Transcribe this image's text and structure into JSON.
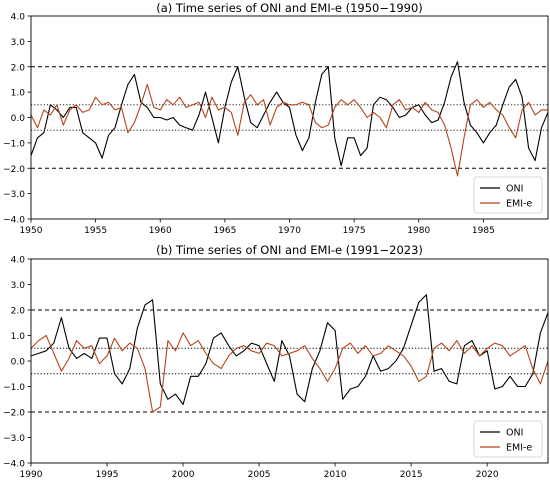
{
  "figure": {
    "background": "#ffffff"
  },
  "chart_data": [
    {
      "type": "line",
      "title": "(a) Time series of ONI and EMI-e (1950−1990)",
      "xlim": [
        1950,
        1990
      ],
      "ylim": [
        -4.0,
        4.0
      ],
      "xticks": [
        1950,
        1955,
        1960,
        1965,
        1970,
        1975,
        1980,
        1985
      ],
      "yticks": [
        -4.0,
        -3.0,
        -2.0,
        -1.0,
        0.0,
        1.0,
        2.0,
        3.0,
        4.0
      ],
      "ytick_labels": [
        "−4.0",
        "−3.0",
        "−2.0",
        "−1.0",
        "0.0",
        "1.0",
        "2.0",
        "3.0",
        "4.0"
      ],
      "reference_lines": [
        {
          "y": 2.0,
          "style": "dashed"
        },
        {
          "y": -2.0,
          "style": "dashed"
        },
        {
          "y": 0.5,
          "style": "dotted"
        },
        {
          "y": -0.5,
          "style": "dotted"
        }
      ],
      "legend_position": "lower-right",
      "series": [
        {
          "name": "ONI",
          "color": "#000000",
          "x": [
            1950.0,
            1950.5,
            1951.0,
            1951.5,
            1952.0,
            1952.5,
            1953.0,
            1953.5,
            1954.0,
            1954.5,
            1955.0,
            1955.5,
            1956.0,
            1956.5,
            1957.0,
            1957.5,
            1958.0,
            1958.5,
            1959.0,
            1959.5,
            1960.0,
            1960.5,
            1961.0,
            1961.5,
            1962.0,
            1962.5,
            1963.0,
            1963.5,
            1964.0,
            1964.5,
            1965.0,
            1965.5,
            1966.0,
            1966.5,
            1967.0,
            1967.5,
            1968.0,
            1968.5,
            1969.0,
            1969.5,
            1970.0,
            1970.5,
            1971.0,
            1971.5,
            1972.0,
            1972.5,
            1973.0,
            1973.5,
            1974.0,
            1974.5,
            1975.0,
            1975.5,
            1976.0,
            1976.5,
            1977.0,
            1977.5,
            1978.0,
            1978.5,
            1979.0,
            1979.5,
            1980.0,
            1980.5,
            1981.0,
            1981.5,
            1982.0,
            1982.5,
            1983.0,
            1983.5,
            1984.0,
            1984.5,
            1985.0,
            1985.5,
            1986.0,
            1986.5,
            1987.0,
            1987.5,
            1988.0,
            1988.5,
            1989.0,
            1989.5,
            1990.0
          ],
          "y": [
            -1.5,
            -0.8,
            -0.6,
            0.5,
            0.3,
            0.0,
            0.4,
            0.4,
            -0.6,
            -0.8,
            -1.0,
            -1.6,
            -0.7,
            -0.4,
            0.5,
            1.3,
            1.7,
            0.6,
            0.4,
            0.0,
            0.0,
            -0.1,
            0.0,
            -0.3,
            -0.4,
            -0.5,
            0.1,
            1.0,
            0.0,
            -1.0,
            0.4,
            1.4,
            2.0,
            0.8,
            -0.2,
            -0.4,
            0.1,
            0.6,
            1.0,
            0.6,
            0.4,
            -0.7,
            -1.3,
            -0.8,
            0.6,
            1.7,
            2.0,
            -0.8,
            -1.9,
            -0.8,
            -0.8,
            -1.5,
            -1.2,
            0.5,
            0.8,
            0.7,
            0.4,
            0.0,
            0.1,
            0.4,
            0.5,
            0.1,
            -0.2,
            -0.1,
            0.6,
            1.6,
            2.2,
            0.6,
            -0.3,
            -0.6,
            -1.0,
            -0.6,
            -0.3,
            0.5,
            1.2,
            1.5,
            0.8,
            -1.2,
            -1.7,
            -0.4,
            0.2
          ]
        },
        {
          "name": "EMI-e",
          "color": "#b5441a",
          "x": [
            1950.0,
            1950.5,
            1951.0,
            1951.5,
            1952.0,
            1952.5,
            1953.0,
            1953.5,
            1954.0,
            1954.5,
            1955.0,
            1955.5,
            1956.0,
            1956.5,
            1957.0,
            1957.5,
            1958.0,
            1958.5,
            1959.0,
            1959.5,
            1960.0,
            1960.5,
            1961.0,
            1961.5,
            1962.0,
            1962.5,
            1963.0,
            1963.5,
            1964.0,
            1964.5,
            1965.0,
            1965.5,
            1966.0,
            1966.5,
            1967.0,
            1967.5,
            1968.0,
            1968.5,
            1969.0,
            1969.5,
            1970.0,
            1970.5,
            1971.0,
            1971.5,
            1972.0,
            1972.5,
            1973.0,
            1973.5,
            1974.0,
            1974.5,
            1975.0,
            1975.5,
            1976.0,
            1976.5,
            1977.0,
            1977.5,
            1978.0,
            1978.5,
            1979.0,
            1979.5,
            1980.0,
            1980.5,
            1981.0,
            1981.5,
            1982.0,
            1982.5,
            1983.0,
            1983.5,
            1984.0,
            1984.5,
            1985.0,
            1985.5,
            1986.0,
            1986.5,
            1987.0,
            1987.5,
            1988.0,
            1988.5,
            1989.0,
            1989.5,
            1990.0
          ],
          "y": [
            0.1,
            -0.4,
            0.3,
            0.1,
            0.5,
            -0.3,
            0.3,
            0.5,
            0.2,
            0.3,
            0.8,
            0.5,
            0.6,
            0.3,
            0.4,
            -0.6,
            -0.2,
            0.5,
            1.3,
            0.4,
            0.3,
            0.7,
            0.5,
            0.8,
            0.4,
            0.5,
            0.6,
            0.0,
            0.8,
            0.3,
            0.4,
            0.2,
            -0.7,
            0.6,
            0.9,
            0.5,
            0.7,
            -0.3,
            0.4,
            0.6,
            0.5,
            0.5,
            0.6,
            0.5,
            -0.2,
            -0.4,
            -0.3,
            0.4,
            0.7,
            0.5,
            0.7,
            0.4,
            0.0,
            0.2,
            0.0,
            -0.4,
            0.5,
            0.7,
            0.3,
            0.4,
            0.2,
            0.6,
            0.3,
            0.2,
            -0.3,
            -1.2,
            -2.3,
            -0.8,
            0.5,
            0.7,
            0.4,
            0.6,
            0.3,
            0.1,
            -0.4,
            -0.8,
            0.3,
            0.6,
            0.1,
            0.3,
            0.3
          ]
        }
      ]
    },
    {
      "type": "line",
      "title": "(b) Time series of ONI and EMI-e (1991−2023)",
      "xlim": [
        1990,
        2024
      ],
      "ylim": [
        -4.0,
        4.0
      ],
      "xticks": [
        1990,
        1995,
        2000,
        2005,
        2010,
        2015,
        2020
      ],
      "yticks": [
        -4.0,
        -3.0,
        -2.0,
        -1.0,
        0.0,
        1.0,
        2.0,
        3.0,
        4.0
      ],
      "ytick_labels": [
        "−4.0",
        "−3.0",
        "−2.0",
        "−1.0",
        "0.0",
        "1.0",
        "2.0",
        "3.0",
        "4.0"
      ],
      "reference_lines": [
        {
          "y": 2.0,
          "style": "dashed"
        },
        {
          "y": -2.0,
          "style": "dashed"
        },
        {
          "y": 0.5,
          "style": "dotted"
        },
        {
          "y": -0.5,
          "style": "dotted"
        }
      ],
      "legend_position": "lower-right",
      "series": [
        {
          "name": "ONI",
          "color": "#000000",
          "x": [
            1990.0,
            1990.5,
            1991.0,
            1991.5,
            1992.0,
            1992.5,
            1993.0,
            1993.5,
            1994.0,
            1994.5,
            1995.0,
            1995.5,
            1996.0,
            1996.5,
            1997.0,
            1997.5,
            1998.0,
            1998.5,
            1999.0,
            1999.5,
            2000.0,
            2000.5,
            2001.0,
            2001.5,
            2002.0,
            2002.5,
            2003.0,
            2003.5,
            2004.0,
            2004.5,
            2005.0,
            2005.5,
            2006.0,
            2006.5,
            2007.0,
            2007.5,
            2008.0,
            2008.5,
            2009.0,
            2009.5,
            2010.0,
            2010.5,
            2011.0,
            2011.5,
            2012.0,
            2012.5,
            2013.0,
            2013.5,
            2014.0,
            2014.5,
            2015.0,
            2015.5,
            2016.0,
            2016.5,
            2017.0,
            2017.5,
            2018.0,
            2018.5,
            2019.0,
            2019.5,
            2020.0,
            2020.5,
            2021.0,
            2021.5,
            2022.0,
            2022.5,
            2023.0,
            2023.5,
            2024.0
          ],
          "y": [
            0.2,
            0.3,
            0.4,
            0.7,
            1.7,
            0.5,
            0.1,
            0.3,
            0.1,
            0.9,
            0.9,
            -0.5,
            -0.9,
            -0.3,
            1.3,
            2.2,
            2.4,
            -0.9,
            -1.5,
            -1.3,
            -1.7,
            -0.6,
            -0.6,
            -0.1,
            0.9,
            1.1,
            0.6,
            0.2,
            0.4,
            0.7,
            0.6,
            -0.1,
            -0.8,
            0.8,
            0.2,
            -1.3,
            -1.6,
            -0.3,
            0.4,
            1.5,
            1.2,
            -1.5,
            -1.1,
            -1.0,
            -0.6,
            0.2,
            -0.4,
            -0.3,
            0.0,
            0.5,
            1.4,
            2.3,
            2.6,
            -0.4,
            -0.3,
            -0.8,
            -0.9,
            0.6,
            0.8,
            0.2,
            0.4,
            -1.1,
            -1.0,
            -0.6,
            -1.0,
            -1.0,
            -0.5,
            1.1,
            1.9
          ]
        },
        {
          "name": "EMI-e",
          "color": "#b5441a",
          "x": [
            1990.0,
            1990.5,
            1991.0,
            1991.5,
            1992.0,
            1992.5,
            1993.0,
            1993.5,
            1994.0,
            1994.5,
            1995.0,
            1995.5,
            1996.0,
            1996.5,
            1997.0,
            1997.5,
            1998.0,
            1998.5,
            1999.0,
            1999.5,
            2000.0,
            2000.5,
            2001.0,
            2001.5,
            2002.0,
            2002.5,
            2003.0,
            2003.5,
            2004.0,
            2004.5,
            2005.0,
            2005.5,
            2006.0,
            2006.5,
            2007.0,
            2007.5,
            2008.0,
            2008.5,
            2009.0,
            2009.5,
            2010.0,
            2010.5,
            2011.0,
            2011.5,
            2012.0,
            2012.5,
            2013.0,
            2013.5,
            2014.0,
            2014.5,
            2015.0,
            2015.5,
            2016.0,
            2016.5,
            2017.0,
            2017.5,
            2018.0,
            2018.5,
            2019.0,
            2019.5,
            2020.0,
            2020.5,
            2021.0,
            2021.5,
            2022.0,
            2022.5,
            2023.0,
            2023.5,
            2024.0
          ],
          "y": [
            0.5,
            0.8,
            1.0,
            0.3,
            -0.4,
            0.1,
            0.8,
            0.5,
            0.6,
            -0.1,
            0.2,
            0.9,
            0.4,
            0.7,
            0.5,
            -0.3,
            -2.0,
            -1.8,
            0.8,
            0.4,
            1.1,
            0.6,
            0.8,
            0.3,
            -0.1,
            -0.3,
            0.2,
            0.5,
            0.6,
            0.4,
            0.3,
            0.7,
            0.6,
            0.2,
            0.3,
            0.4,
            0.6,
            0.1,
            -0.3,
            -0.8,
            -0.3,
            0.5,
            0.7,
            0.3,
            0.6,
            0.2,
            0.3,
            0.6,
            0.4,
            0.2,
            -0.2,
            -0.8,
            -0.6,
            0.5,
            0.7,
            0.4,
            0.8,
            0.3,
            0.6,
            0.2,
            0.5,
            0.7,
            0.6,
            0.2,
            0.4,
            0.6,
            -0.3,
            -0.9,
            0.0
          ]
        }
      ]
    }
  ]
}
